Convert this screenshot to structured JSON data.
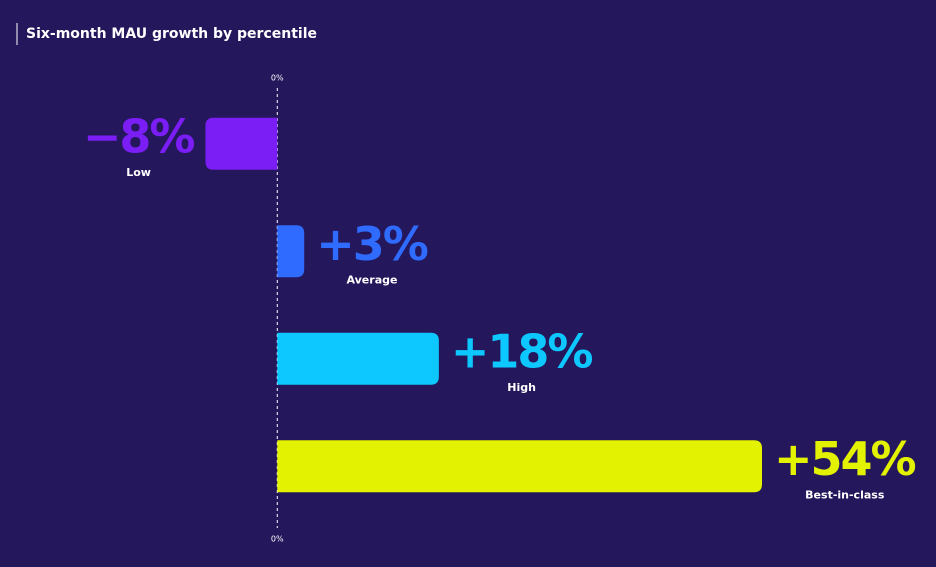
{
  "chart_data": {
    "type": "bar",
    "orientation": "horizontal",
    "title": "Six-month MAU growth by percentile",
    "categories": [
      "Low",
      "Average",
      "High",
      "Best-in-class"
    ],
    "values": [
      -8,
      3,
      18,
      54
    ],
    "value_labels": [
      "−8%",
      "+3%",
      "+18%",
      "+54%"
    ],
    "colors": [
      "#7a1ef5",
      "#2f6bff",
      "#0cc8ff",
      "#e3f200"
    ],
    "xlim": [
      -30,
      54
    ],
    "xticks": [
      {
        "value": 0,
        "label": "0%"
      }
    ],
    "grid": false
  }
}
